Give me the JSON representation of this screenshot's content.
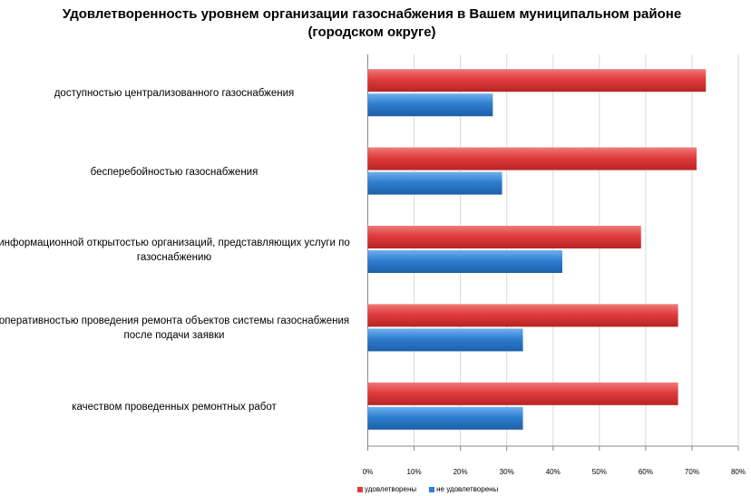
{
  "chart_data": {
    "type": "bar",
    "orientation": "horizontal",
    "title": "Удовлетворенность уровнем организации газоснабжения в Вашем муниципальном районе (городском округе)",
    "categories": [
      "доступностью централизованного газоснабжения",
      "бесперебойностью газоснабжения",
      "информационной открытостью организаций, представляющих услуги по газоснабжению",
      "оперативностью проведения ремонта объектов системы газоснабжения после подачи заявки",
      "качеством проведенных ремонтных работ"
    ],
    "series": [
      {
        "name": "удовлетворены",
        "color": "#e03c3c",
        "values": [
          73,
          71,
          59,
          67,
          67
        ]
      },
      {
        "name": "не удовлетворены",
        "color": "#2f7fd0",
        "values": [
          27,
          29,
          42,
          33.5,
          33.5
        ]
      }
    ],
    "xlim": [
      0,
      80
    ],
    "ticks": [
      "0%",
      "10%",
      "20%",
      "30%",
      "40%",
      "50%",
      "60%",
      "70%",
      "80%"
    ],
    "grid": true,
    "legend": "bottom"
  }
}
